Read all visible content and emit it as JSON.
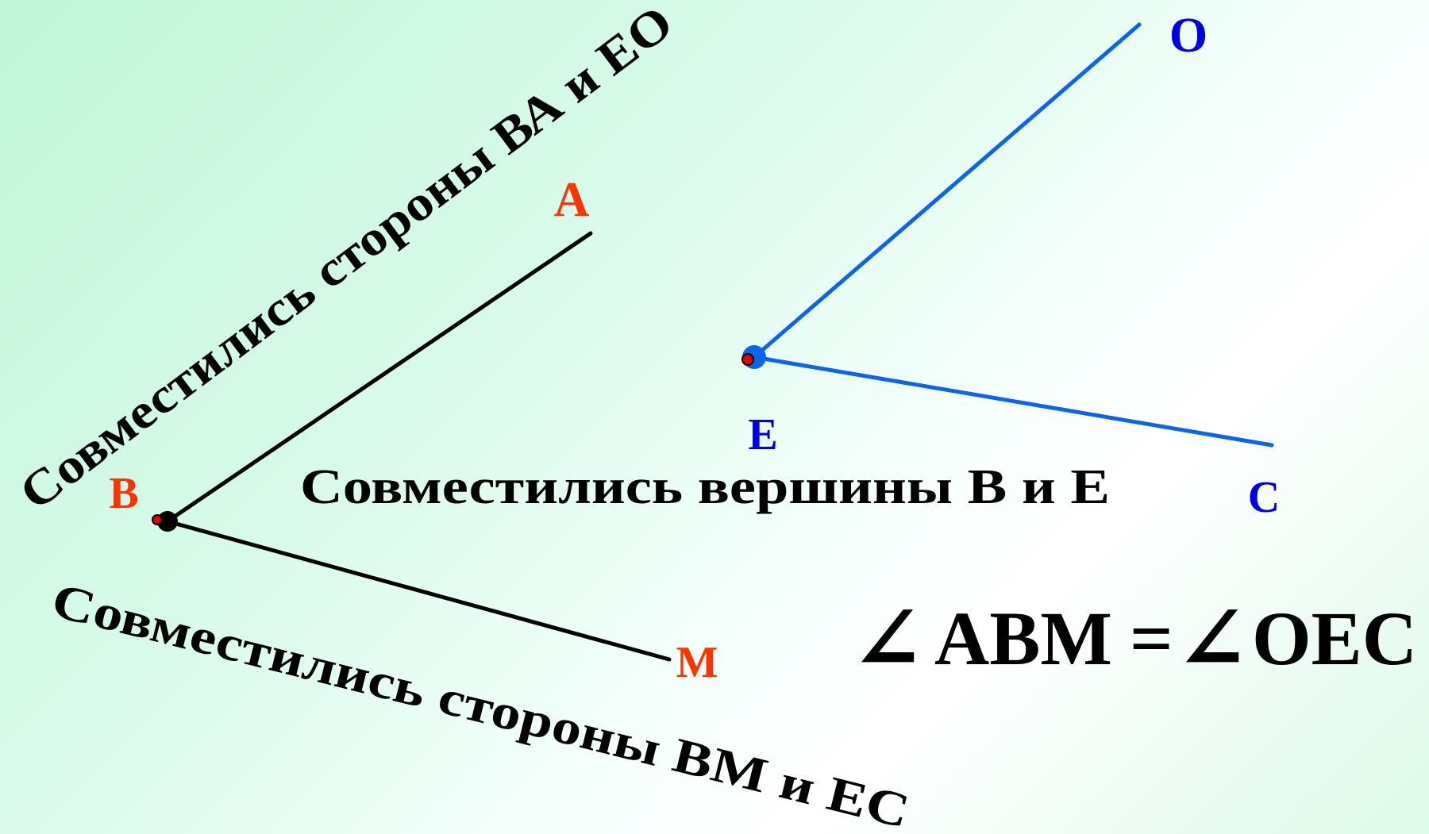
{
  "colors": {
    "angle_abm_stroke": "#000000",
    "angle_oec_stroke": "#0a64f0",
    "label_abm": "#ff3300",
    "label_oec": "#0000e6",
    "vertex_marker": "#e60000",
    "text": "#000000"
  },
  "points": {
    "A": "A",
    "B": "B",
    "M": "M",
    "O": "O",
    "E": "E",
    "C": "C"
  },
  "captions": {
    "sides_ba_eo": "Совместились стороны ВА и ЕО",
    "vertices": "Совместились вершины В и Е",
    "sides_bm_ec": "Совместились стороны ВМ и ЕС"
  },
  "equation": {
    "angle_symbol": "∠",
    "left": "ABM",
    "equals": "=",
    "right": "OEC"
  }
}
